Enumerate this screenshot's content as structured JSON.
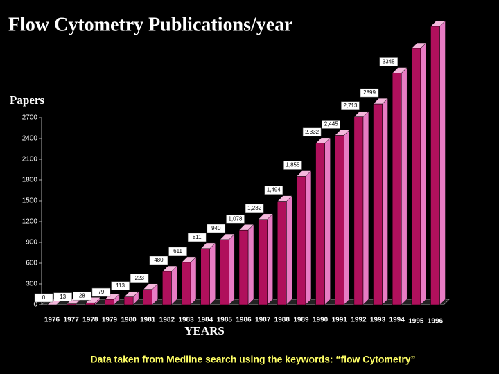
{
  "chart_data": {
    "type": "bar3d",
    "title": "Flow Cytometry Publications/year",
    "y_label": "Papers",
    "x_label": "YEARS",
    "note": "Data taken from Medline search using the keywords: “flow Cytometry”",
    "categories": [
      "1976",
      "1977",
      "1978",
      "1979",
      "1980",
      "1981",
      "1982",
      "1983",
      "1984",
      "1985",
      "1986",
      "1987",
      "1988",
      "1989",
      "1990",
      "1991",
      "1992",
      "1993",
      "1994",
      "1995",
      "1996"
    ],
    "values": [
      0,
      13,
      28,
      79,
      113,
      223,
      480,
      611,
      811,
      940,
      1078,
      1232,
      1494,
      1855,
      2332,
      2445,
      2713,
      2899,
      3345,
      3700,
      4020
    ],
    "value_labels": [
      "0",
      "13",
      "28",
      "79",
      "113",
      "223",
      "480",
      "611",
      "811",
      "940",
      "1,078",
      "1,232",
      "1,494",
      "1,855",
      "2,332",
      "2,445",
      "2,713",
      "2899",
      "3345",
      null,
      null
    ],
    "color": "#b0105c",
    "side_color": "#e87cc4",
    "ylim": [
      0,
      2700
    ],
    "yticks": [
      0,
      300,
      600,
      900,
      1200,
      1500,
      1800,
      2100,
      2400,
      2700
    ]
  }
}
